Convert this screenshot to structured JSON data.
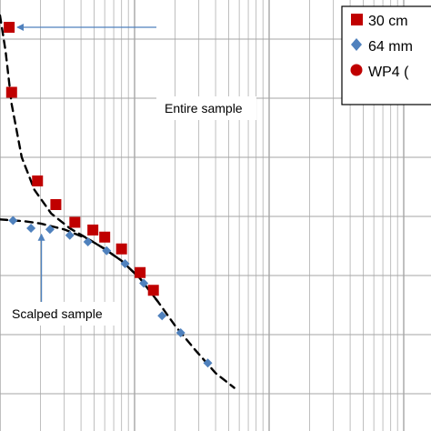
{
  "chart_data": {
    "type": "scatter",
    "title": "",
    "xlabel": "",
    "ylabel": "",
    "x_scale": "log",
    "grid": true,
    "legend_position": "top-right",
    "series": [
      {
        "name": "30 cm",
        "legend_label": "30 cm",
        "marker": "square",
        "color": "#c00000",
        "x": [
          1.17,
          1.22,
          1.9,
          2.6,
          3.6,
          4.9,
          6.0,
          8.0,
          11.0,
          13.8
        ],
        "y": [
          0.82,
          0.71,
          0.56,
          0.52,
          0.49,
          0.477,
          0.465,
          0.445,
          0.405,
          0.375
        ]
      },
      {
        "name": "64 mm",
        "legend_label": "64 mm",
        "marker": "diamond",
        "color": "#4f81bd",
        "x": [
          1.25,
          1.7,
          2.35,
          3.3,
          4.5,
          6.2,
          8.5,
          11.7,
          16.0,
          22.0,
          35.0
        ],
        "y": [
          0.493,
          0.48,
          0.478,
          0.468,
          0.457,
          0.442,
          0.42,
          0.387,
          0.332,
          0.303,
          0.252
        ]
      },
      {
        "name": "WP4",
        "legend_label": "WP4 (",
        "marker": "circle",
        "color": "#c00000",
        "x": [],
        "y": []
      }
    ],
    "fit_curves": [
      {
        "style": "dashed",
        "color": "#000000",
        "x": [
          1.0,
          1.1,
          1.22,
          1.45,
          1.8,
          2.4,
          3.3,
          4.5,
          6.0,
          8.0,
          11.0,
          15.0,
          20.0,
          28.0,
          40.0,
          55.0
        ],
        "y": [
          0.84,
          0.78,
          0.69,
          0.6,
          0.545,
          0.505,
          0.48,
          0.462,
          0.445,
          0.425,
          0.395,
          0.355,
          0.315,
          0.275,
          0.235,
          0.21
        ]
      },
      {
        "style": "dashed",
        "color": "#000000",
        "x": [
          1.0,
          1.5,
          2.0,
          3.0,
          4.5,
          6.0,
          8.0,
          11.0,
          15.0
        ],
        "y": [
          0.495,
          0.492,
          0.488,
          0.478,
          0.462,
          0.445,
          0.425,
          0.395,
          0.355
        ]
      }
    ],
    "annotations": [
      {
        "text": "Entire sample",
        "arrow_to": {
          "x": 1.17,
          "y": 0.82
        }
      },
      {
        "text": "Scalped sample",
        "arrow_to": {
          "x": 2.0,
          "y": 0.485
        }
      }
    ]
  }
}
